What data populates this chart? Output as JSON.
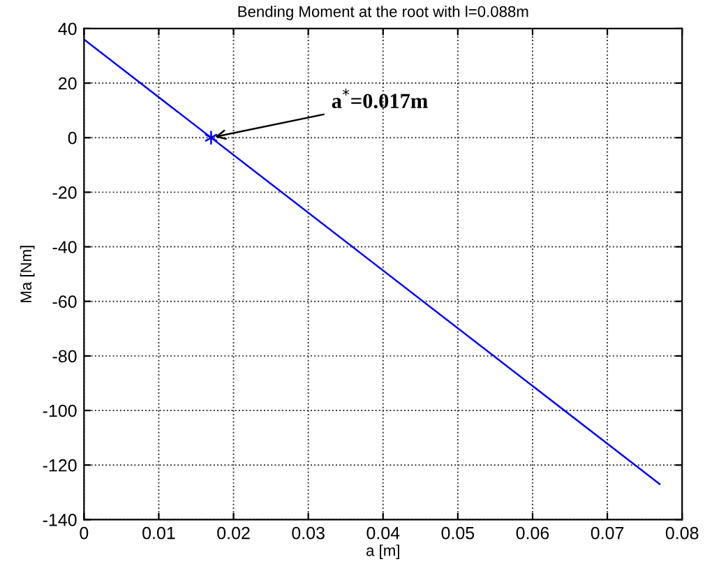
{
  "chart_data": {
    "type": "line",
    "title": "Bending Moment at the root with l=0.088m",
    "xlabel": "a [m]",
    "ylabel": "Ma [Nm]",
    "series": [
      {
        "color": "#0000ff",
        "x": [
          0,
          0.077
        ],
        "values": [
          36,
          -127
        ],
        "marker": "none"
      },
      {
        "type": "scatter",
        "color": "#0000ff",
        "x": [
          0.017
        ],
        "values": [
          0
        ],
        "marker": "cross"
      }
    ],
    "annotations": [
      {
        "text": "a$^{*}$=0.017m",
        "x": 0.017,
        "y": 0
      }
    ],
    "xlim": [
      0,
      0.08
    ],
    "xticks": [
      0,
      0.01,
      0.02,
      0.03,
      0.04,
      0.05,
      0.06,
      0.07,
      0.08
    ],
    "ylim": [
      -140,
      40
    ],
    "yticks": [
      -140,
      -120,
      -100,
      -80,
      -60,
      -40,
      -20,
      0,
      20,
      40
    ],
    "grid": true
  }
}
